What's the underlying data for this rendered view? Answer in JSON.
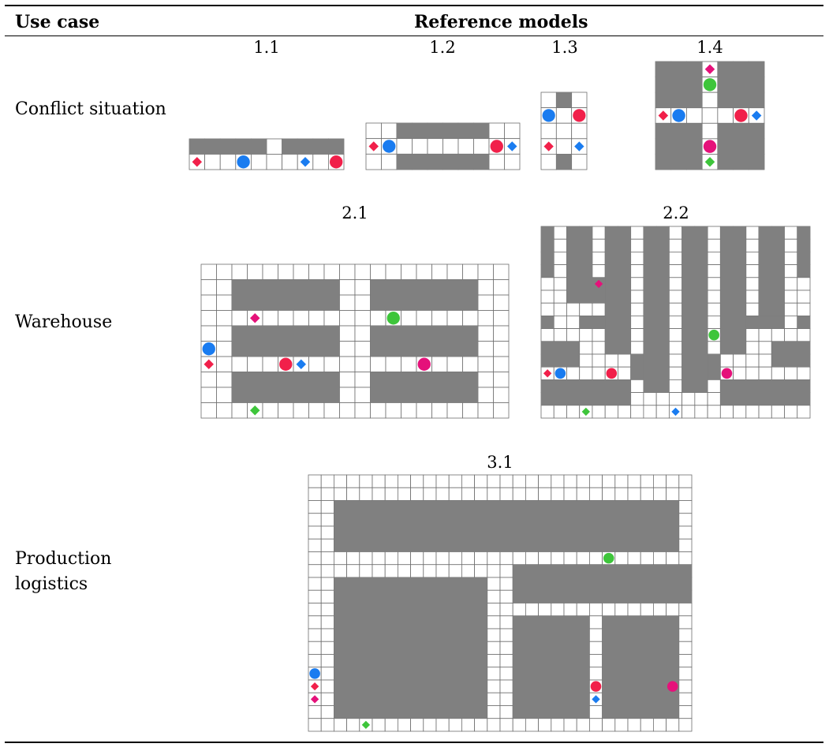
{
  "header": {
    "use_case": "Use case",
    "reference_models": "Reference models"
  },
  "rows": [
    {
      "label": "Conflict situation"
    },
    {
      "label": "Warehouse"
    },
    {
      "label_line1": "Production",
      "label_line2": "logistics"
    }
  ],
  "colors": {
    "wall": "#808080",
    "grid_line": "#6e6e6e",
    "cell": "#ffffff",
    "red": "#f1204a",
    "blue": "#1a7cf0",
    "green": "#3ec53b",
    "magenta": "#e5117a"
  },
  "models": [
    {
      "id": "1.1",
      "cols": 10,
      "rows": 2,
      "walls": [
        [
          0,
          0,
          5,
          1
        ],
        [
          6,
          0,
          4,
          1
        ]
      ],
      "agents": [
        {
          "shape": "diamond",
          "color": "red",
          "c": 0,
          "r": 1
        },
        {
          "shape": "circle",
          "color": "blue",
          "c": 3,
          "r": 1
        },
        {
          "shape": "diamond",
          "color": "blue",
          "c": 7,
          "r": 1
        },
        {
          "shape": "circle",
          "color": "red",
          "c": 9,
          "r": 1
        }
      ]
    },
    {
      "id": "1.2",
      "cols": 10,
      "rows": 3,
      "walls": [
        [
          2,
          0,
          6,
          1
        ],
        [
          2,
          2,
          6,
          1
        ]
      ],
      "agents": [
        {
          "shape": "diamond",
          "color": "red",
          "c": 0,
          "r": 1
        },
        {
          "shape": "circle",
          "color": "blue",
          "c": 1,
          "r": 1
        },
        {
          "shape": "circle",
          "color": "red",
          "c": 8,
          "r": 1
        },
        {
          "shape": "diamond",
          "color": "blue",
          "c": 9,
          "r": 1
        }
      ]
    },
    {
      "id": "1.3",
      "cols": 3,
      "rows": 5,
      "walls": [
        [
          1,
          0,
          1,
          1
        ],
        [
          1,
          4,
          1,
          1
        ]
      ],
      "agents": [
        {
          "shape": "circle",
          "color": "blue",
          "c": 0,
          "r": 1
        },
        {
          "shape": "circle",
          "color": "red",
          "c": 2,
          "r": 1
        },
        {
          "shape": "diamond",
          "color": "red",
          "c": 0,
          "r": 3
        },
        {
          "shape": "diamond",
          "color": "blue",
          "c": 2,
          "r": 3
        }
      ]
    },
    {
      "id": "1.4",
      "cols": 7,
      "rows": 7,
      "walls": [
        [
          0,
          0,
          3,
          3
        ],
        [
          4,
          0,
          3,
          3
        ],
        [
          0,
          4,
          3,
          3
        ],
        [
          4,
          4,
          3,
          3
        ]
      ],
      "agents": [
        {
          "shape": "diamond",
          "color": "magenta",
          "c": 3,
          "r": 0
        },
        {
          "shape": "circle",
          "color": "green",
          "c": 3,
          "r": 1
        },
        {
          "shape": "diamond",
          "color": "red",
          "c": 0,
          "r": 3
        },
        {
          "shape": "circle",
          "color": "blue",
          "c": 1,
          "r": 3
        },
        {
          "shape": "circle",
          "color": "red",
          "c": 5,
          "r": 3
        },
        {
          "shape": "diamond",
          "color": "blue",
          "c": 6,
          "r": 3
        },
        {
          "shape": "circle",
          "color": "magenta",
          "c": 3,
          "r": 5
        },
        {
          "shape": "diamond",
          "color": "green",
          "c": 3,
          "r": 6
        }
      ]
    },
    {
      "id": "2.1",
      "cols": 20,
      "rows": 10,
      "walls": [
        [
          2,
          1,
          7,
          2
        ],
        [
          11,
          1,
          7,
          2
        ],
        [
          2,
          4,
          7,
          2
        ],
        [
          11,
          4,
          7,
          2
        ],
        [
          2,
          7,
          7,
          2
        ],
        [
          11,
          7,
          7,
          2
        ]
      ],
      "agents": [
        {
          "shape": "diamond",
          "color": "magenta",
          "c": 3,
          "r": 3
        },
        {
          "shape": "circle",
          "color": "green",
          "c": 12,
          "r": 3
        },
        {
          "shape": "circle",
          "color": "blue",
          "c": 0,
          "r": 5
        },
        {
          "shape": "diamond",
          "color": "red",
          "c": 0,
          "r": 6
        },
        {
          "shape": "circle",
          "color": "red",
          "c": 5,
          "r": 6
        },
        {
          "shape": "diamond",
          "color": "blue",
          "c": 6,
          "r": 6
        },
        {
          "shape": "circle",
          "color": "magenta",
          "c": 14,
          "r": 6
        },
        {
          "shape": "diamond",
          "color": "green",
          "c": 3,
          "r": 9
        }
      ]
    },
    {
      "id": "2.2",
      "cols": 21,
      "rows": 15,
      "walls": [
        [
          0,
          0,
          1,
          4
        ],
        [
          2,
          0,
          2,
          6
        ],
        [
          5,
          0,
          2,
          10
        ],
        [
          8,
          0,
          2,
          13
        ],
        [
          11,
          0,
          2,
          13
        ],
        [
          14,
          0,
          2,
          10
        ],
        [
          17,
          0,
          2,
          7
        ],
        [
          20,
          0,
          1,
          4
        ],
        [
          4,
          4,
          1,
          2
        ],
        [
          0,
          7,
          1,
          1
        ],
        [
          3,
          7,
          2,
          1
        ],
        [
          16,
          7,
          3,
          1
        ],
        [
          20,
          7,
          1,
          1
        ],
        [
          0,
          9,
          3,
          2
        ],
        [
          18,
          9,
          3,
          2
        ],
        [
          7,
          10,
          1,
          2
        ],
        [
          13,
          10,
          1,
          2
        ],
        [
          0,
          12,
          7,
          2
        ],
        [
          14,
          12,
          7,
          2
        ]
      ],
      "agents": [
        {
          "shape": "diamond",
          "color": "magenta",
          "c": 4,
          "r": 4
        },
        {
          "shape": "circle",
          "color": "green",
          "c": 13,
          "r": 8
        },
        {
          "shape": "diamond",
          "color": "red",
          "c": 0,
          "r": 11
        },
        {
          "shape": "circle",
          "color": "blue",
          "c": 1,
          "r": 11
        },
        {
          "shape": "circle",
          "color": "red",
          "c": 5,
          "r": 11
        },
        {
          "shape": "circle",
          "color": "magenta",
          "c": 14,
          "r": 11
        },
        {
          "shape": "diamond",
          "color": "green",
          "c": 3,
          "r": 14
        },
        {
          "shape": "diamond",
          "color": "blue",
          "c": 10,
          "r": 14
        }
      ]
    },
    {
      "id": "3.1",
      "cols": 30,
      "rows": 20,
      "walls": [
        [
          2,
          2,
          27,
          4
        ],
        [
          2,
          8,
          12,
          11
        ],
        [
          16,
          7,
          14,
          3
        ],
        [
          16,
          11,
          6,
          8
        ],
        [
          23,
          11,
          6,
          8
        ]
      ],
      "agents": [
        {
          "shape": "circle",
          "color": "green",
          "c": 23,
          "r": 6
        },
        {
          "shape": "circle",
          "color": "blue",
          "c": 0,
          "r": 15
        },
        {
          "shape": "diamond",
          "color": "red",
          "c": 0,
          "r": 16
        },
        {
          "shape": "diamond",
          "color": "magenta",
          "c": 0,
          "r": 17
        },
        {
          "shape": "circle",
          "color": "red",
          "c": 22,
          "r": 16
        },
        {
          "shape": "circle",
          "color": "magenta",
          "c": 28,
          "r": 16
        },
        {
          "shape": "diamond",
          "color": "blue",
          "c": 22,
          "r": 17
        },
        {
          "shape": "diamond",
          "color": "green",
          "c": 4,
          "r": 19
        }
      ]
    }
  ]
}
